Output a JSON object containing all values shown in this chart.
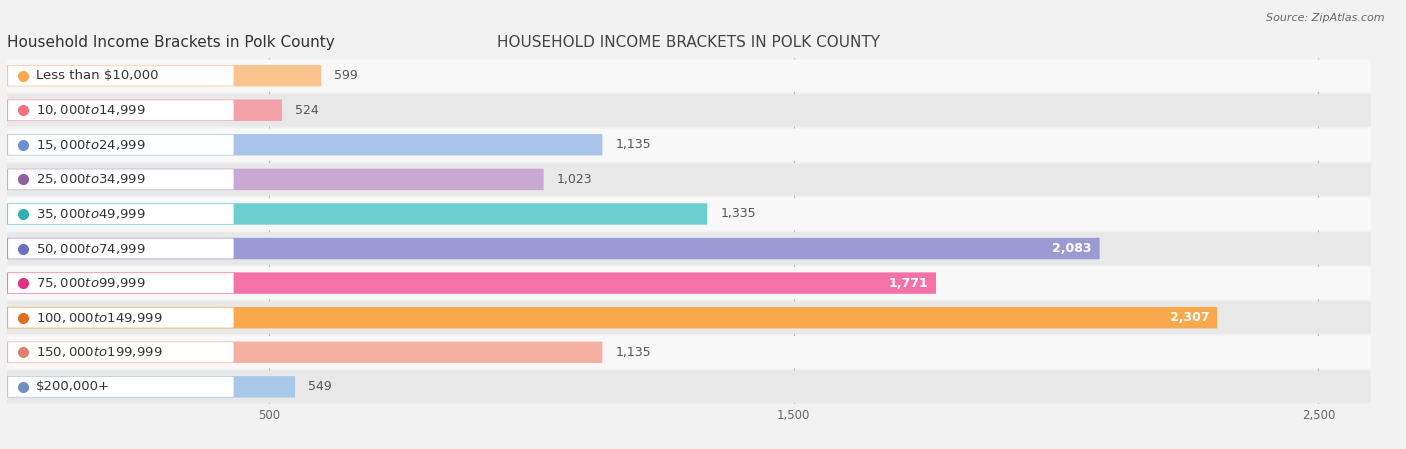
{
  "title": "Household Income Brackets in Polk County",
  "source": "Source: ZipAtlas.com",
  "categories": [
    "Less than $10,000",
    "$10,000 to $14,999",
    "$15,000 to $24,999",
    "$25,000 to $34,999",
    "$35,000 to $49,999",
    "$50,000 to $74,999",
    "$75,000 to $99,999",
    "$100,000 to $149,999",
    "$150,000 to $199,999",
    "$200,000+"
  ],
  "values": [
    599,
    524,
    1135,
    1023,
    1335,
    2083,
    1771,
    2307,
    1135,
    549
  ],
  "bar_colors": [
    "#F9C48E",
    "#F4A0A8",
    "#A8C4E8",
    "#C9A8D4",
    "#6DCECE",
    "#9B9BD4",
    "#F472A8",
    "#F9A84C",
    "#F4B0A0",
    "#A8C8E8"
  ],
  "dot_colors": [
    "#F9A84C",
    "#F47080",
    "#7090D0",
    "#9060A0",
    "#30B0B0",
    "#7070C0",
    "#E03080",
    "#E07020",
    "#E08070",
    "#7090C0"
  ],
  "background_color": "#f0f0f0",
  "row_bg_even": "#f8f8f8",
  "row_bg_odd": "#e8e8e8",
  "xlim_max": 2600,
  "xticks": [
    500,
    1500,
    2500
  ],
  "title_fontsize": 11,
  "label_fontsize": 9.5,
  "value_fontsize": 9
}
